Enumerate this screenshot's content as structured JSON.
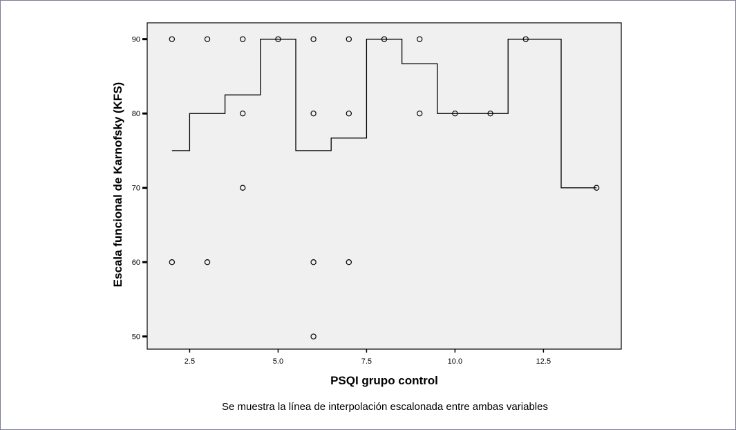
{
  "chart_data": {
    "type": "scatter",
    "xlabel": "PSQI grupo control",
    "ylabel": "Escala funcional de Karnofsky (KFS)",
    "caption": "Se muestra la línea de interpolación escalonada entre ambas variables",
    "xlim": [
      1.3,
      14.7
    ],
    "ylim": [
      48.3,
      92.2
    ],
    "x_ticks": [
      2.5,
      5.0,
      7.5,
      10.0,
      12.5
    ],
    "x_tick_labels": [
      "2.5",
      "5.0",
      "7.5",
      "10.0",
      "12.5"
    ],
    "y_ticks": [
      50,
      60,
      70,
      80,
      90
    ],
    "y_tick_labels": [
      "50",
      "60",
      "70",
      "80",
      "90"
    ],
    "grid": false,
    "plot_background": "#f0f0f0",
    "points": [
      {
        "x": 2,
        "y": 90
      },
      {
        "x": 2,
        "y": 60
      },
      {
        "x": 3,
        "y": 90
      },
      {
        "x": 3,
        "y": 60
      },
      {
        "x": 4,
        "y": 90
      },
      {
        "x": 4,
        "y": 80
      },
      {
        "x": 4,
        "y": 70
      },
      {
        "x": 5,
        "y": 90
      },
      {
        "x": 6,
        "y": 90
      },
      {
        "x": 6,
        "y": 80
      },
      {
        "x": 6,
        "y": 60
      },
      {
        "x": 6,
        "y": 50
      },
      {
        "x": 7,
        "y": 90
      },
      {
        "x": 7,
        "y": 80
      },
      {
        "x": 7,
        "y": 60
      },
      {
        "x": 8,
        "y": 90
      },
      {
        "x": 9,
        "y": 90
      },
      {
        "x": 9,
        "y": 80
      },
      {
        "x": 10,
        "y": 80
      },
      {
        "x": 11,
        "y": 80
      },
      {
        "x": 12,
        "y": 90
      },
      {
        "x": 14,
        "y": 70
      }
    ],
    "step_line": [
      {
        "x": 2,
        "y": 75
      },
      {
        "x": 3,
        "y": 80
      },
      {
        "x": 4,
        "y": 82.5
      },
      {
        "x": 5,
        "y": 90
      },
      {
        "x": 6,
        "y": 75
      },
      {
        "x": 7,
        "y": 76.7
      },
      {
        "x": 8,
        "y": 90
      },
      {
        "x": 9,
        "y": 86.7
      },
      {
        "x": 10,
        "y": 80
      },
      {
        "x": 11,
        "y": 80
      },
      {
        "x": 12,
        "y": 90
      },
      {
        "x": 14,
        "y": 70
      }
    ]
  }
}
